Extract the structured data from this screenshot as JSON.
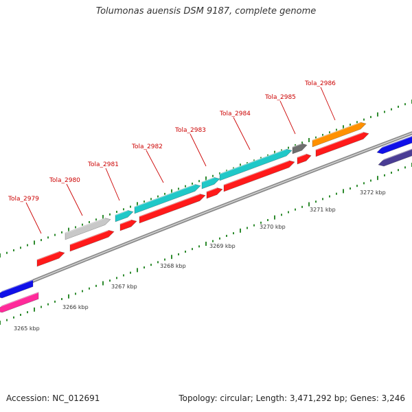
{
  "header": {
    "title": "Tolumonas auensis DSM 9187, complete genome"
  },
  "footer": {
    "accession": "Accession: NC_012691",
    "topology": "Topology: circular; Length: 3,471,292 bp; Genes: 3,246"
  },
  "colors": {
    "backbone": "#8c8c8c",
    "tick": "#2e8b2e",
    "gene_label": "#cc0000",
    "red": "#ff1a1a",
    "cyan": "#20c8c8",
    "gray": "#c8c8c8",
    "dark_gray": "#6e6e6e",
    "orange": "#ff9000",
    "blue": "#1010e8",
    "indigo": "#4a3d94",
    "pink": "#ff2a9a"
  },
  "scale_labels": [
    "3265 kbp",
    "3266 kbp",
    "3267 kbp",
    "3268 kbp",
    "3269 kbp",
    "3270 kbp",
    "3271 kbp",
    "3272 kbp"
  ],
  "gene_labels": [
    "Tola_2979",
    "Tola_2980",
    "Tola_2981",
    "Tola_2982",
    "Tola_2983",
    "Tola_2984",
    "Tola_2985",
    "Tola_2986"
  ],
  "genes": [
    {
      "label": "Tola_2979",
      "color": "red",
      "lane": "lane1",
      "strand": "+"
    },
    {
      "label": "Tola_2980",
      "color": "red",
      "lane": "lane1",
      "strand": "+"
    },
    {
      "label": "Tola_2980",
      "color": "gray",
      "lane": "lane2",
      "strand": "+"
    },
    {
      "label": "Tola_2981",
      "color": "red",
      "lane": "lane1",
      "strand": "+"
    },
    {
      "label": "Tola_2981",
      "color": "cyan",
      "lane": "lane2",
      "strand": "+"
    },
    {
      "label": "Tola_2982",
      "color": "red",
      "lane": "lane1",
      "strand": "+"
    },
    {
      "label": "Tola_2982",
      "color": "cyan",
      "lane": "lane2",
      "strand": "+"
    },
    {
      "label": "Tola_2983",
      "color": "red",
      "lane": "lane1",
      "strand": "+"
    },
    {
      "label": "Tola_2983",
      "color": "cyan",
      "lane": "lane2",
      "strand": "+"
    },
    {
      "label": "Tola_2984",
      "color": "red",
      "lane": "lane1",
      "strand": "+"
    },
    {
      "label": "Tola_2984",
      "color": "cyan",
      "lane": "lane2",
      "strand": "+"
    },
    {
      "label": "Tola_2985",
      "color": "red",
      "lane": "lane1",
      "strand": "+"
    },
    {
      "label": "Tola_2985",
      "color": "dark_gray",
      "lane": "lane2",
      "strand": "+"
    },
    {
      "label": "Tola_2986",
      "color": "red",
      "lane": "lane1",
      "strand": "+"
    },
    {
      "label": "Tola_2986",
      "color": "orange",
      "lane": "lane2",
      "strand": "+"
    },
    {
      "label": "",
      "color": "blue",
      "lane": "lane-1",
      "strand": "-"
    },
    {
      "label": "",
      "color": "indigo",
      "lane": "lane-2",
      "strand": "-"
    },
    {
      "label": "",
      "color": "blue",
      "lane": "lane-1",
      "strand": "-"
    },
    {
      "label": "",
      "color": "pink",
      "lane": "lane-2",
      "strand": "-"
    }
  ]
}
